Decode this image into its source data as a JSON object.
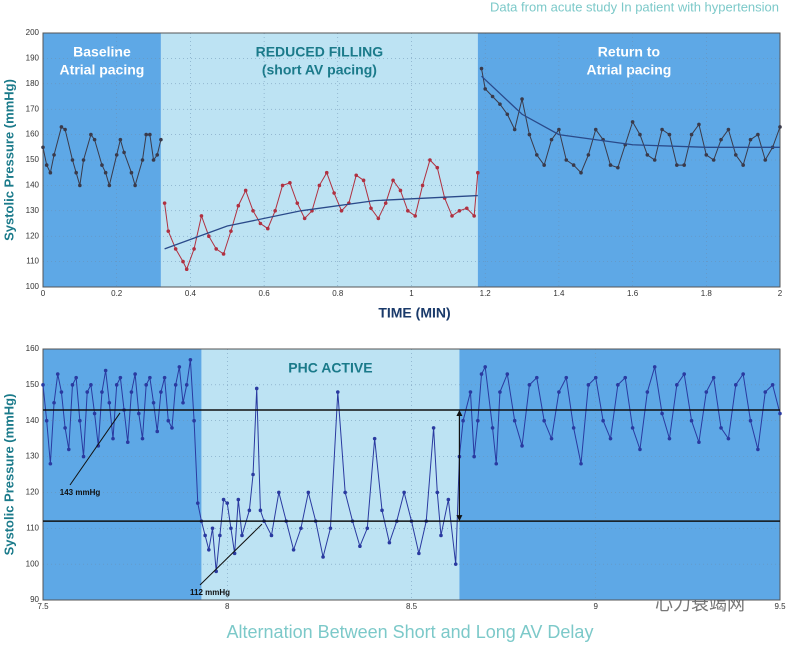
{
  "watermark": "心力衰竭网",
  "chart_data": [
    {
      "type": "line",
      "subtitle": "Data from acute study In patient with hypertension",
      "y_label": "Systolic Pressure (mmHg)",
      "x_label": "TIME (MIN)",
      "xlim": [
        0,
        2
      ],
      "xticks": [
        0,
        0.2,
        0.4,
        0.6,
        0.8,
        1,
        1.2,
        1.4,
        1.6,
        1.8,
        2
      ],
      "ylim": [
        100,
        200
      ],
      "yticks": [
        100,
        110,
        120,
        130,
        140,
        150,
        160,
        170,
        180,
        190,
        200
      ],
      "grid": true,
      "regions": [
        {
          "x": [
            0,
            0.32
          ],
          "color": "#5ea8e6",
          "text_color": "#ffffff",
          "label": [
            "Baseline",
            "Atrial pacing"
          ]
        },
        {
          "x": [
            0.32,
            1.18
          ],
          "color": "#bde3f3",
          "text_color": "#1a7a8a",
          "label": [
            "REDUCED FILLING",
            "(short AV pacing)"
          ]
        },
        {
          "x": [
            1.18,
            2
          ],
          "color": "#5ea8e6",
          "text_color": "#ffffff",
          "label": [
            "Return to",
            "Atrial pacing"
          ]
        }
      ],
      "series": [
        {
          "color": "#3a3a4a",
          "markers": true,
          "x": [
            0,
            0.01,
            0.02,
            0.03,
            0.05,
            0.06,
            0.08,
            0.09,
            0.1,
            0.11,
            0.13,
            0.14,
            0.16,
            0.17,
            0.18,
            0.2,
            0.21,
            0.22,
            0.24,
            0.25,
            0.27,
            0.28,
            0.29,
            0.3,
            0.31,
            0.32
          ],
          "values": [
            155,
            148,
            145,
            152,
            163,
            162,
            150,
            145,
            140,
            150,
            160,
            158,
            148,
            145,
            140,
            152,
            158,
            153,
            145,
            140,
            150,
            160,
            160,
            150,
            152,
            158
          ]
        },
        {
          "color": "#b03040",
          "markers": true,
          "x": [
            0.33,
            0.34,
            0.36,
            0.38,
            0.39,
            0.41,
            0.43,
            0.45,
            0.47,
            0.49,
            0.51,
            0.53,
            0.55,
            0.57,
            0.59,
            0.61,
            0.63,
            0.65,
            0.67,
            0.69,
            0.71,
            0.73,
            0.75,
            0.77,
            0.79,
            0.81,
            0.83,
            0.85,
            0.87,
            0.89,
            0.91,
            0.93,
            0.95,
            0.97,
            0.99,
            1.01,
            1.03,
            1.05,
            1.07,
            1.09,
            1.11,
            1.13,
            1.15,
            1.17,
            1.18
          ],
          "values": [
            133,
            122,
            115,
            110,
            107,
            115,
            128,
            120,
            115,
            113,
            122,
            132,
            138,
            130,
            125,
            123,
            130,
            140,
            141,
            133,
            127,
            130,
            140,
            145,
            137,
            130,
            133,
            144,
            142,
            131,
            127,
            133,
            142,
            138,
            130,
            128,
            140,
            150,
            147,
            135,
            128,
            130,
            131,
            128,
            145
          ]
        },
        {
          "color": "#3a3a4a",
          "markers": true,
          "x": [
            1.19,
            1.2,
            1.22,
            1.24,
            1.26,
            1.28,
            1.3,
            1.32,
            1.34,
            1.36,
            1.38,
            1.4,
            1.42,
            1.44,
            1.46,
            1.48,
            1.5,
            1.52,
            1.54,
            1.56,
            1.58,
            1.6,
            1.62,
            1.64,
            1.66,
            1.68,
            1.7,
            1.72,
            1.74,
            1.76,
            1.78,
            1.8,
            1.82,
            1.84,
            1.86,
            1.88,
            1.9,
            1.92,
            1.94,
            1.96,
            1.98,
            2
          ],
          "values": [
            186,
            178,
            175,
            172,
            168,
            162,
            174,
            160,
            152,
            148,
            158,
            162,
            150,
            148,
            145,
            152,
            162,
            158,
            148,
            147,
            156,
            165,
            160,
            152,
            150,
            162,
            160,
            148,
            148,
            160,
            164,
            152,
            150,
            158,
            162,
            152,
            148,
            158,
            160,
            150,
            155,
            163
          ]
        },
        {
          "color": "#2a4a8a",
          "markers": false,
          "x": [
            0.33,
            0.5,
            0.7,
            0.9,
            1.18
          ],
          "values": [
            115,
            124,
            130,
            134,
            136
          ]
        },
        {
          "color": "#2a4a8a",
          "markers": false,
          "x": [
            1.19,
            1.3,
            1.4,
            1.6,
            1.8,
            2
          ],
          "values": [
            183,
            168,
            160,
            156,
            155,
            155
          ]
        }
      ]
    },
    {
      "type": "line",
      "y_label": "Systolic Pressure (mmHg)",
      "caption": "Alternation Between Short and Long AV Delay",
      "xlim": [
        7.5,
        9.5
      ],
      "xticks": [
        7.5,
        8,
        8.5,
        9,
        9.5
      ],
      "ylim": [
        90,
        160
      ],
      "yticks": [
        90,
        100,
        110,
        120,
        130,
        140,
        150,
        160
      ],
      "grid": true,
      "regions": [
        {
          "x": [
            7.5,
            7.93
          ],
          "color": "#5ea8e6",
          "text_color": "#ffffff",
          "label": []
        },
        {
          "x": [
            7.93,
            8.63
          ],
          "color": "#bde3f3",
          "text_color": "#1a7a8a",
          "label": [
            "PHC ACTIVE"
          ]
        },
        {
          "x": [
            8.63,
            9.5
          ],
          "color": "#5ea8e6",
          "text_color": "#ffffff",
          "label": []
        }
      ],
      "annotations": [
        {
          "label": "143 mmHg",
          "value": 143
        },
        {
          "label": "112 mmHg",
          "value": 112
        }
      ],
      "series": [
        {
          "color": "#2a3aa0",
          "markers": true,
          "x": [
            7.5,
            7.51,
            7.52,
            7.53,
            7.54,
            7.55,
            7.56,
            7.57,
            7.58,
            7.59,
            7.6,
            7.61,
            7.62,
            7.63,
            7.64,
            7.65,
            7.66,
            7.67,
            7.68,
            7.69,
            7.7,
            7.71,
            7.72,
            7.73,
            7.74,
            7.75,
            7.76,
            7.77,
            7.78,
            7.79,
            7.8,
            7.81,
            7.82,
            7.83,
            7.84,
            7.85,
            7.86,
            7.87,
            7.88,
            7.89,
            7.9,
            7.91,
            7.92,
            7.93,
            7.94,
            7.95,
            7.96,
            7.97,
            7.98,
            7.99,
            8,
            8.01,
            8.02,
            8.03,
            8.04,
            8.06,
            8.07,
            8.08,
            8.09,
            8.1,
            8.12,
            8.14,
            8.16,
            8.18,
            8.2,
            8.22,
            8.24,
            8.26,
            8.28,
            8.3,
            8.32,
            8.34,
            8.36,
            8.38,
            8.4,
            8.42,
            8.44,
            8.46,
            8.48,
            8.5,
            8.52,
            8.54,
            8.56,
            8.57,
            8.58,
            8.6,
            8.62,
            8.63,
            8.64,
            8.66,
            8.67,
            8.68,
            8.69,
            8.7,
            8.72,
            8.73,
            8.74,
            8.76,
            8.78,
            8.8,
            8.82,
            8.84,
            8.86,
            8.88,
            8.9,
            8.92,
            8.94,
            8.96,
            8.98,
            9,
            9.02,
            9.04,
            9.06,
            9.08,
            9.1,
            9.12,
            9.14,
            9.16,
            9.18,
            9.2,
            9.22,
            9.24,
            9.26,
            9.28,
            9.3,
            9.32,
            9.34,
            9.36,
            9.38,
            9.4,
            9.42,
            9.44,
            9.46,
            9.48,
            9.5
          ],
          "values": [
            150,
            140,
            128,
            145,
            153,
            148,
            138,
            132,
            150,
            152,
            140,
            130,
            148,
            150,
            142,
            133,
            148,
            154,
            145,
            135,
            150,
            152,
            143,
            134,
            148,
            153,
            142,
            135,
            150,
            152,
            145,
            137,
            148,
            152,
            140,
            138,
            150,
            155,
            145,
            150,
            157,
            140,
            117,
            112,
            108,
            104,
            110,
            98,
            108,
            118,
            117,
            110,
            103,
            118,
            108,
            115,
            125,
            149,
            115,
            112,
            108,
            120,
            112,
            104,
            110,
            120,
            112,
            102,
            110,
            148,
            120,
            112,
            105,
            110,
            135,
            115,
            106,
            112,
            120,
            112,
            103,
            112,
            138,
            120,
            108,
            118,
            100,
            130,
            140,
            148,
            130,
            140,
            153,
            155,
            138,
            128,
            148,
            153,
            140,
            133,
            150,
            152,
            140,
            135,
            148,
            152,
            138,
            128,
            150,
            152,
            140,
            135,
            150,
            152,
            138,
            132,
            148,
            155,
            142,
            135,
            150,
            153,
            140,
            134,
            148,
            152,
            138,
            135,
            150,
            153,
            140,
            132,
            148,
            150,
            142
          ]
        }
      ]
    }
  ]
}
